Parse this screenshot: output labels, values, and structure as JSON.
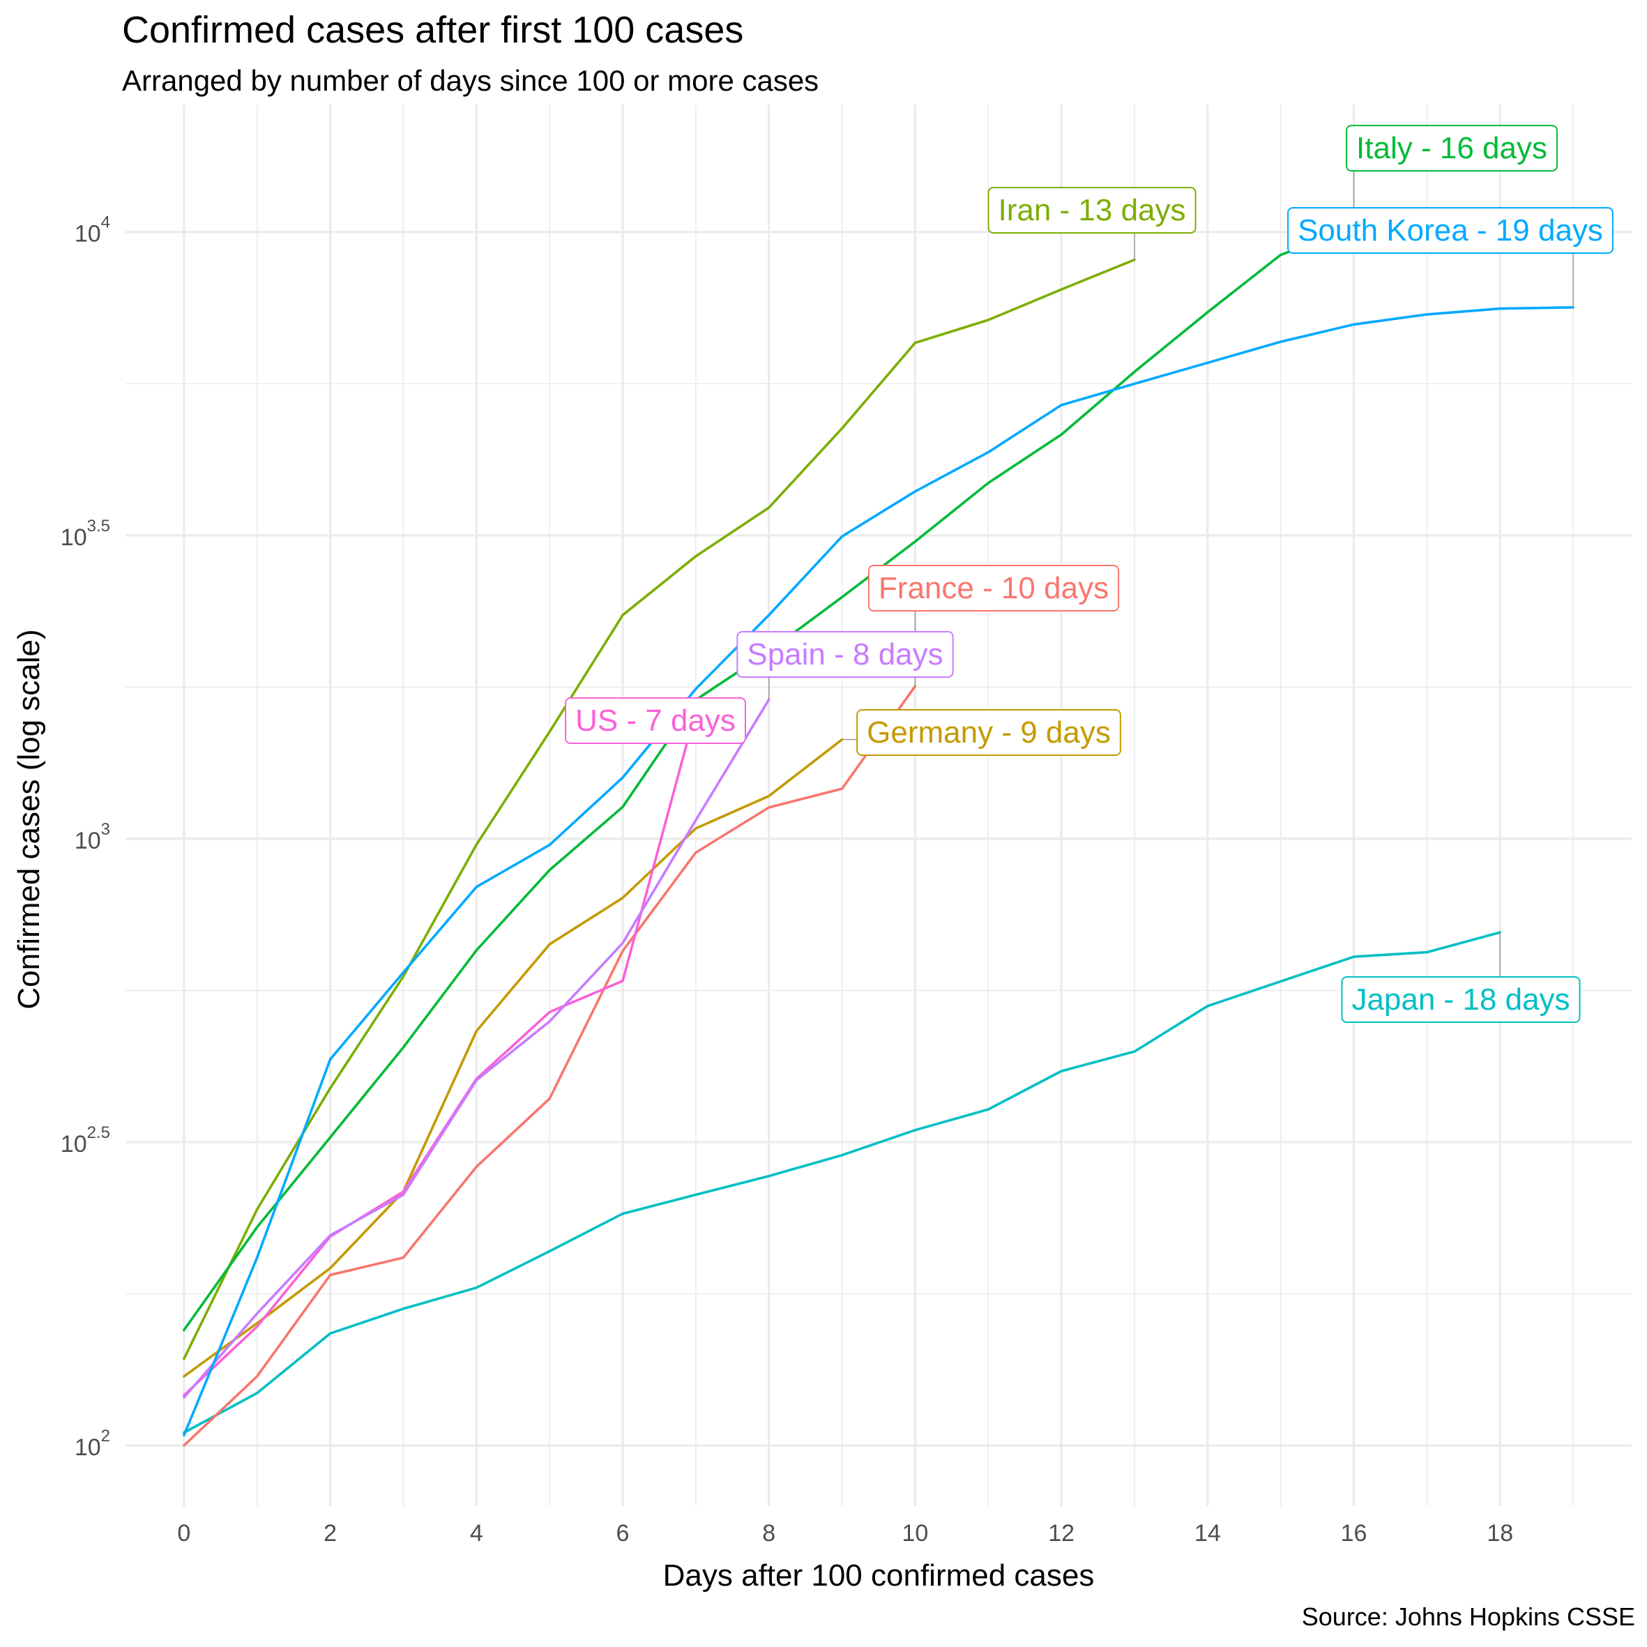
{
  "chart_data": {
    "type": "line",
    "title": "Confirmed cases after first 100 cases",
    "subtitle": "Arranged by number of days since 100 or more cases",
    "xlabel": "Days after 100 confirmed cases",
    "ylabel": "Confirmed cases (log scale)",
    "caption": "Source: Johns Hopkins CSSE",
    "xlim": [
      -0.8,
      19.8
    ],
    "ylim_log10": [
      1.9,
      4.21
    ],
    "x_ticks": [
      0,
      2,
      4,
      6,
      8,
      10,
      12,
      14,
      16,
      18
    ],
    "x_tick_labels": [
      "0",
      "2",
      "4",
      "6",
      "8",
      "10",
      "12",
      "14",
      "16",
      "18"
    ],
    "y_ticks": [
      {
        "log": 2,
        "base": "10",
        "exp": "2"
      },
      {
        "log": 2.5,
        "base": "10",
        "exp": "2.5"
      },
      {
        "log": 3,
        "base": "10",
        "exp": "3"
      },
      {
        "log": 3.5,
        "base": "10",
        "exp": "3.5"
      },
      {
        "log": 4,
        "base": "10",
        "exp": "4"
      }
    ],
    "y_minor_logs": [
      2.25,
      2.75,
      3.25,
      3.75
    ],
    "grid": true,
    "series": [
      {
        "name": "Japan",
        "label": "Japan - 18 days",
        "color": "#00BFC4",
        "x": [
          0,
          1,
          2,
          3,
          4,
          5,
          6,
          7,
          8,
          9,
          10,
          11,
          12,
          13,
          14,
          15,
          16,
          17,
          18
        ],
        "y": [
          105,
          122,
          153,
          168,
          182,
          209,
          241,
          259,
          278,
          301,
          331,
          358,
          414,
          446,
          530,
          582,
          639,
          650,
          701
        ]
      },
      {
        "name": "France",
        "label": "France - 10 days",
        "color": "#F8766D",
        "x": [
          0,
          1,
          2,
          3,
          4,
          5,
          6,
          7,
          8,
          9,
          10
        ],
        "y": [
          100,
          130,
          191,
          204,
          288,
          373,
          653,
          949,
          1126,
          1209,
          1784
        ]
      },
      {
        "name": "Germany",
        "label": "Germany - 9 days",
        "color": "#C49A00",
        "x": [
          0,
          1,
          2,
          3,
          4,
          5,
          6,
          7,
          8,
          9
        ],
        "y": [
          130,
          159,
          196,
          262,
          482,
          670,
          799,
          1040,
          1176,
          1457
        ]
      },
      {
        "name": "US",
        "label": "US - 7 days",
        "color": "#FB61D7",
        "x": [
          0,
          1,
          2,
          3,
          4,
          5,
          6,
          7
        ],
        "y": [
          121,
          157,
          221,
          262,
          402,
          518,
          583,
          1629
        ]
      },
      {
        "name": "Spain",
        "label": "Spain - 8 days",
        "color": "#C77CFF",
        "x": [
          0,
          1,
          2,
          3,
          4,
          5,
          6,
          7,
          8
        ],
        "y": [
          120,
          165,
          222,
          259,
          400,
          500,
          673,
          1073,
          1695
        ]
      },
      {
        "name": "Iran",
        "label": "Iran - 13 days",
        "color": "#7CAE00",
        "x": [
          0,
          1,
          2,
          3,
          4,
          5,
          6,
          7,
          8,
          9,
          10,
          11,
          12,
          13
        ],
        "y": [
          139,
          245,
          388,
          593,
          978,
          1501,
          2336,
          2922,
          3513,
          4747,
          6566,
          7161,
          8042,
          9000
        ]
      },
      {
        "name": "Italy",
        "label": "Italy - 16 days",
        "color": "#00BA38",
        "x": [
          0,
          1,
          2,
          3,
          4,
          5,
          6,
          7,
          8,
          9,
          10,
          11,
          12,
          13,
          14,
          15,
          16
        ],
        "y": [
          155,
          229,
          322,
          453,
          655,
          888,
          1128,
          1694,
          2036,
          2502,
          3089,
          3858,
          4636,
          5883,
          7375,
          9172,
          10149
        ]
      },
      {
        "name": "South Korea",
        "label": "South Korea - 19 days",
        "color": "#00A9FF",
        "x": [
          0,
          1,
          2,
          3,
          4,
          5,
          6,
          7,
          8,
          9,
          10,
          11,
          12,
          13,
          14,
          15,
          16,
          17,
          18,
          19
        ],
        "y": [
          104,
          204,
          433,
          602,
          833,
          977,
          1261,
          1766,
          2337,
          3150,
          3736,
          4335,
          5186,
          5621,
          6088,
          6593,
          7041,
          7314,
          7478,
          7513
        ]
      }
    ]
  }
}
